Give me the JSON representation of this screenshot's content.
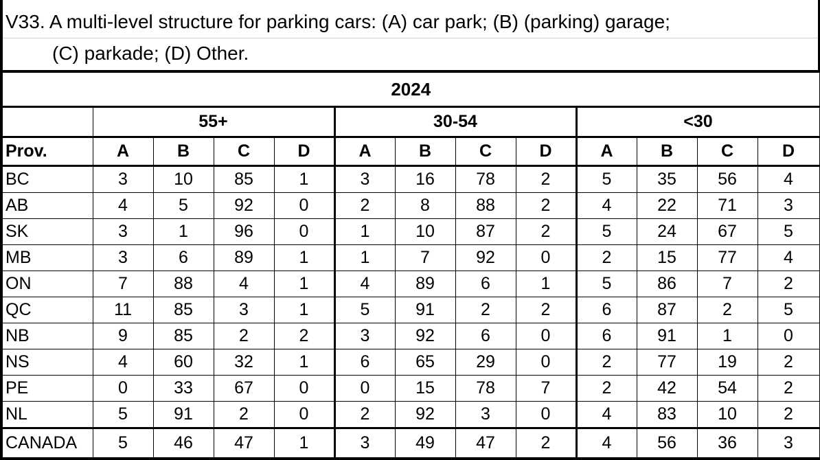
{
  "title": {
    "line1": "V33. A multi-level structure for parking cars: (A) car park; (B) (parking) garage;",
    "line2": "(C) parkade; (D) Other."
  },
  "year": "2024",
  "groups": [
    "55+",
    "30-54",
    "<30"
  ],
  "prov_header": "Prov.",
  "letters": [
    "A",
    "B",
    "C",
    "D"
  ],
  "rows": [
    {
      "prov": "BC",
      "values": [
        "3",
        "10",
        "85",
        "1",
        "3",
        "16",
        "78",
        "2",
        "5",
        "35",
        "56",
        "4"
      ]
    },
    {
      "prov": "AB",
      "values": [
        "4",
        "5",
        "92",
        "0",
        "2",
        "8",
        "88",
        "2",
        "4",
        "22",
        "71",
        "3"
      ]
    },
    {
      "prov": "SK",
      "values": [
        "3",
        "1",
        "96",
        "0",
        "1",
        "10",
        "87",
        "2",
        "5",
        "24",
        "67",
        "5"
      ]
    },
    {
      "prov": "MB",
      "values": [
        "3",
        "6",
        "89",
        "1",
        "1",
        "7",
        "92",
        "0",
        "2",
        "15",
        "77",
        "4"
      ]
    },
    {
      "prov": "ON",
      "values": [
        "7",
        "88",
        "4",
        "1",
        "4",
        "89",
        "6",
        "1",
        "5",
        "86",
        "7",
        "2"
      ]
    },
    {
      "prov": "QC",
      "values": [
        "11",
        "85",
        "3",
        "1",
        "5",
        "91",
        "2",
        "2",
        "6",
        "87",
        "2",
        "5"
      ]
    },
    {
      "prov": "NB",
      "values": [
        "9",
        "85",
        "2",
        "2",
        "3",
        "92",
        "6",
        "0",
        "6",
        "91",
        "1",
        "0"
      ]
    },
    {
      "prov": "NS",
      "values": [
        "4",
        "60",
        "32",
        "1",
        "6",
        "65",
        "29",
        "0",
        "2",
        "77",
        "19",
        "2"
      ]
    },
    {
      "prov": "PE",
      "values": [
        "0",
        "33",
        "67",
        "0",
        "0",
        "15",
        "78",
        "7",
        "2",
        "42",
        "54",
        "2"
      ]
    },
    {
      "prov": "NL",
      "values": [
        "5",
        "91",
        "2",
        "0",
        "2",
        "92",
        "3",
        "0",
        "4",
        "83",
        "10",
        "2"
      ]
    }
  ],
  "total": {
    "prov": "CANADA",
    "values": [
      "5",
      "46",
      "47",
      "1",
      "3",
      "49",
      "47",
      "2",
      "4",
      "56",
      "36",
      "3"
    ]
  }
}
